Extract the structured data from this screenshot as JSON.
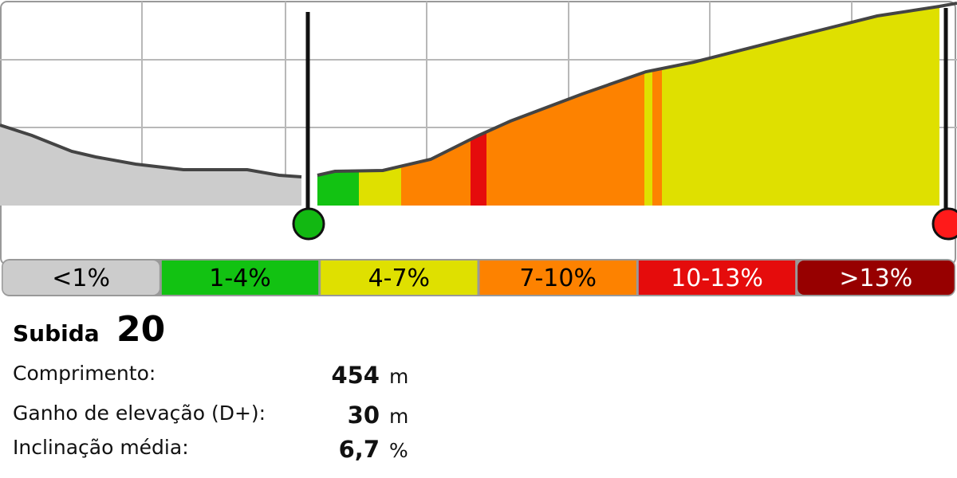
{
  "legend": [
    {
      "label": "<1%",
      "color": "#cccccc",
      "text_color": "#000000"
    },
    {
      "label": "1-4%",
      "color": "#12c212",
      "text_color": "#000000"
    },
    {
      "label": "4-7%",
      "color": "#dfe000",
      "text_color": "#000000"
    },
    {
      "label": "7-10%",
      "color": "#fd8200",
      "text_color": "#000000"
    },
    {
      "label": "10-13%",
      "color": "#e50c0c",
      "text_color": "#ffffff"
    },
    {
      "label": ">13%",
      "color": "#970000",
      "text_color": "#ffffff"
    }
  ],
  "climb": {
    "label": "Subida",
    "number": 20
  },
  "stats": [
    {
      "label": "Comprimento:",
      "value": "454",
      "unit": "m"
    },
    {
      "label": "Ganho de elevação (D+):",
      "value": "30",
      "unit": "m"
    },
    {
      "label": "Inclinação média:",
      "value": "6,7",
      "unit": "%"
    }
  ]
}
